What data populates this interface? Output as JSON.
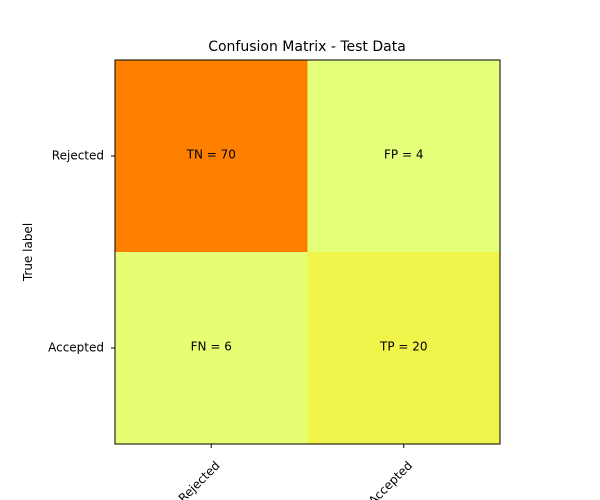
{
  "chart_data": {
    "type": "heatmap",
    "title": "Confusion Matrix - Test Data",
    "ylabel": "True label",
    "xlabel": "",
    "x_categories": [
      "Rejected",
      "Accepted"
    ],
    "y_categories": [
      "Rejected",
      "Accepted"
    ],
    "values": [
      [
        70,
        4
      ],
      [
        6,
        20
      ]
    ],
    "cell_labels": [
      [
        "TN = 70",
        "FP = 4"
      ],
      [
        "FN = 6",
        "TP = 20"
      ]
    ],
    "colormap": "Wistia",
    "colors": {
      "low": "#e4ff7a",
      "mid": "#ffe81a",
      "high": "#ff8000"
    },
    "grid": false
  }
}
